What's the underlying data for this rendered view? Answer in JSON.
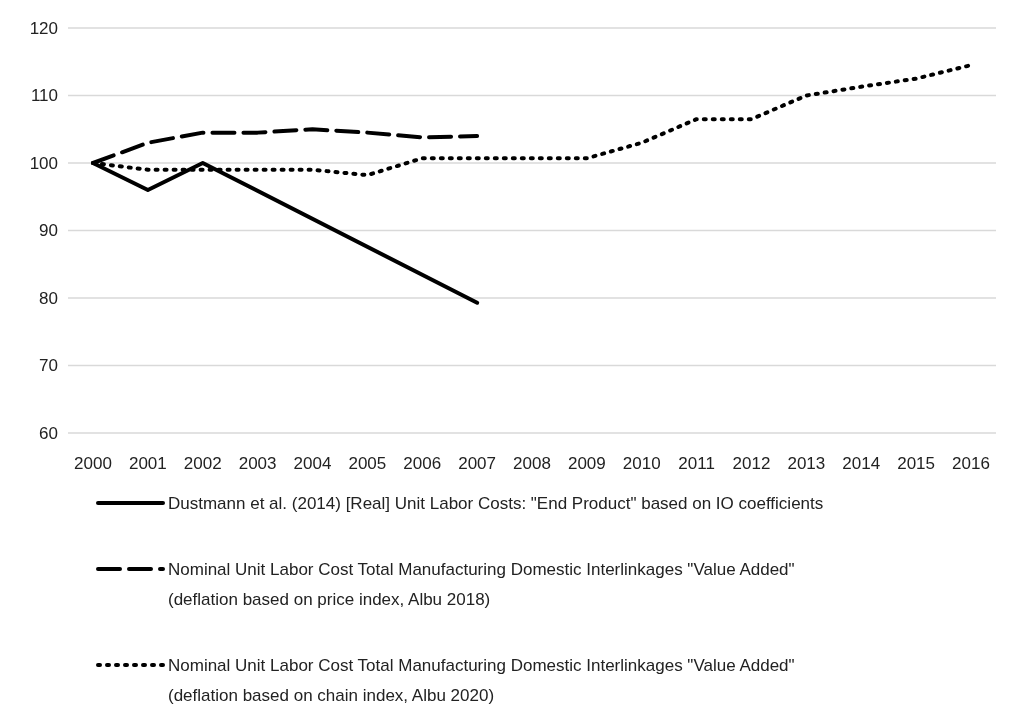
{
  "chart_data": {
    "type": "line",
    "categories": [
      "2000",
      "2001",
      "2002",
      "2003",
      "2004",
      "2005",
      "2006",
      "2007",
      "2008",
      "2009",
      "2010",
      "2011",
      "2012",
      "2013",
      "2014",
      "2015",
      "2016"
    ],
    "series": [
      {
        "name": "Dustmann et al. (2014) [Real] Unit Labor Costs: \"End Product\" based on IO coefficients",
        "color": "#000000",
        "line_style": "solid",
        "values": [
          100,
          96,
          100,
          null,
          null,
          null,
          null,
          79.3,
          null,
          null,
          null,
          null,
          null,
          null,
          null,
          null,
          null
        ]
      },
      {
        "name": "Nominal Unit Labor Cost Total Manufacturing Domestic Interlinkages \"Value Added\" (deflation based on price index, Albu 2018)",
        "color": "#000000",
        "line_style": "dashed",
        "values": [
          100,
          103,
          104.5,
          104.5,
          105,
          104.5,
          103.8,
          104,
          null,
          null,
          null,
          null,
          null,
          null,
          null,
          null,
          null
        ]
      },
      {
        "name": "Nominal Unit Labor Cost Total Manufacturing Domestic Interlinkages \"Value Added\" (deflation based on chain index, Albu 2020)",
        "color": "#000000",
        "line_style": "dotted",
        "values": [
          100,
          99,
          99,
          99,
          99,
          98.2,
          100.7,
          100.7,
          100.7,
          100.7,
          103,
          106.5,
          106.5,
          110,
          111.3,
          112.5,
          114.5
        ]
      }
    ],
    "ylim": [
      60,
      120
    ],
    "yticks": [
      60,
      70,
      80,
      90,
      100,
      110,
      120
    ],
    "grid": "y",
    "legend": "bottom"
  }
}
